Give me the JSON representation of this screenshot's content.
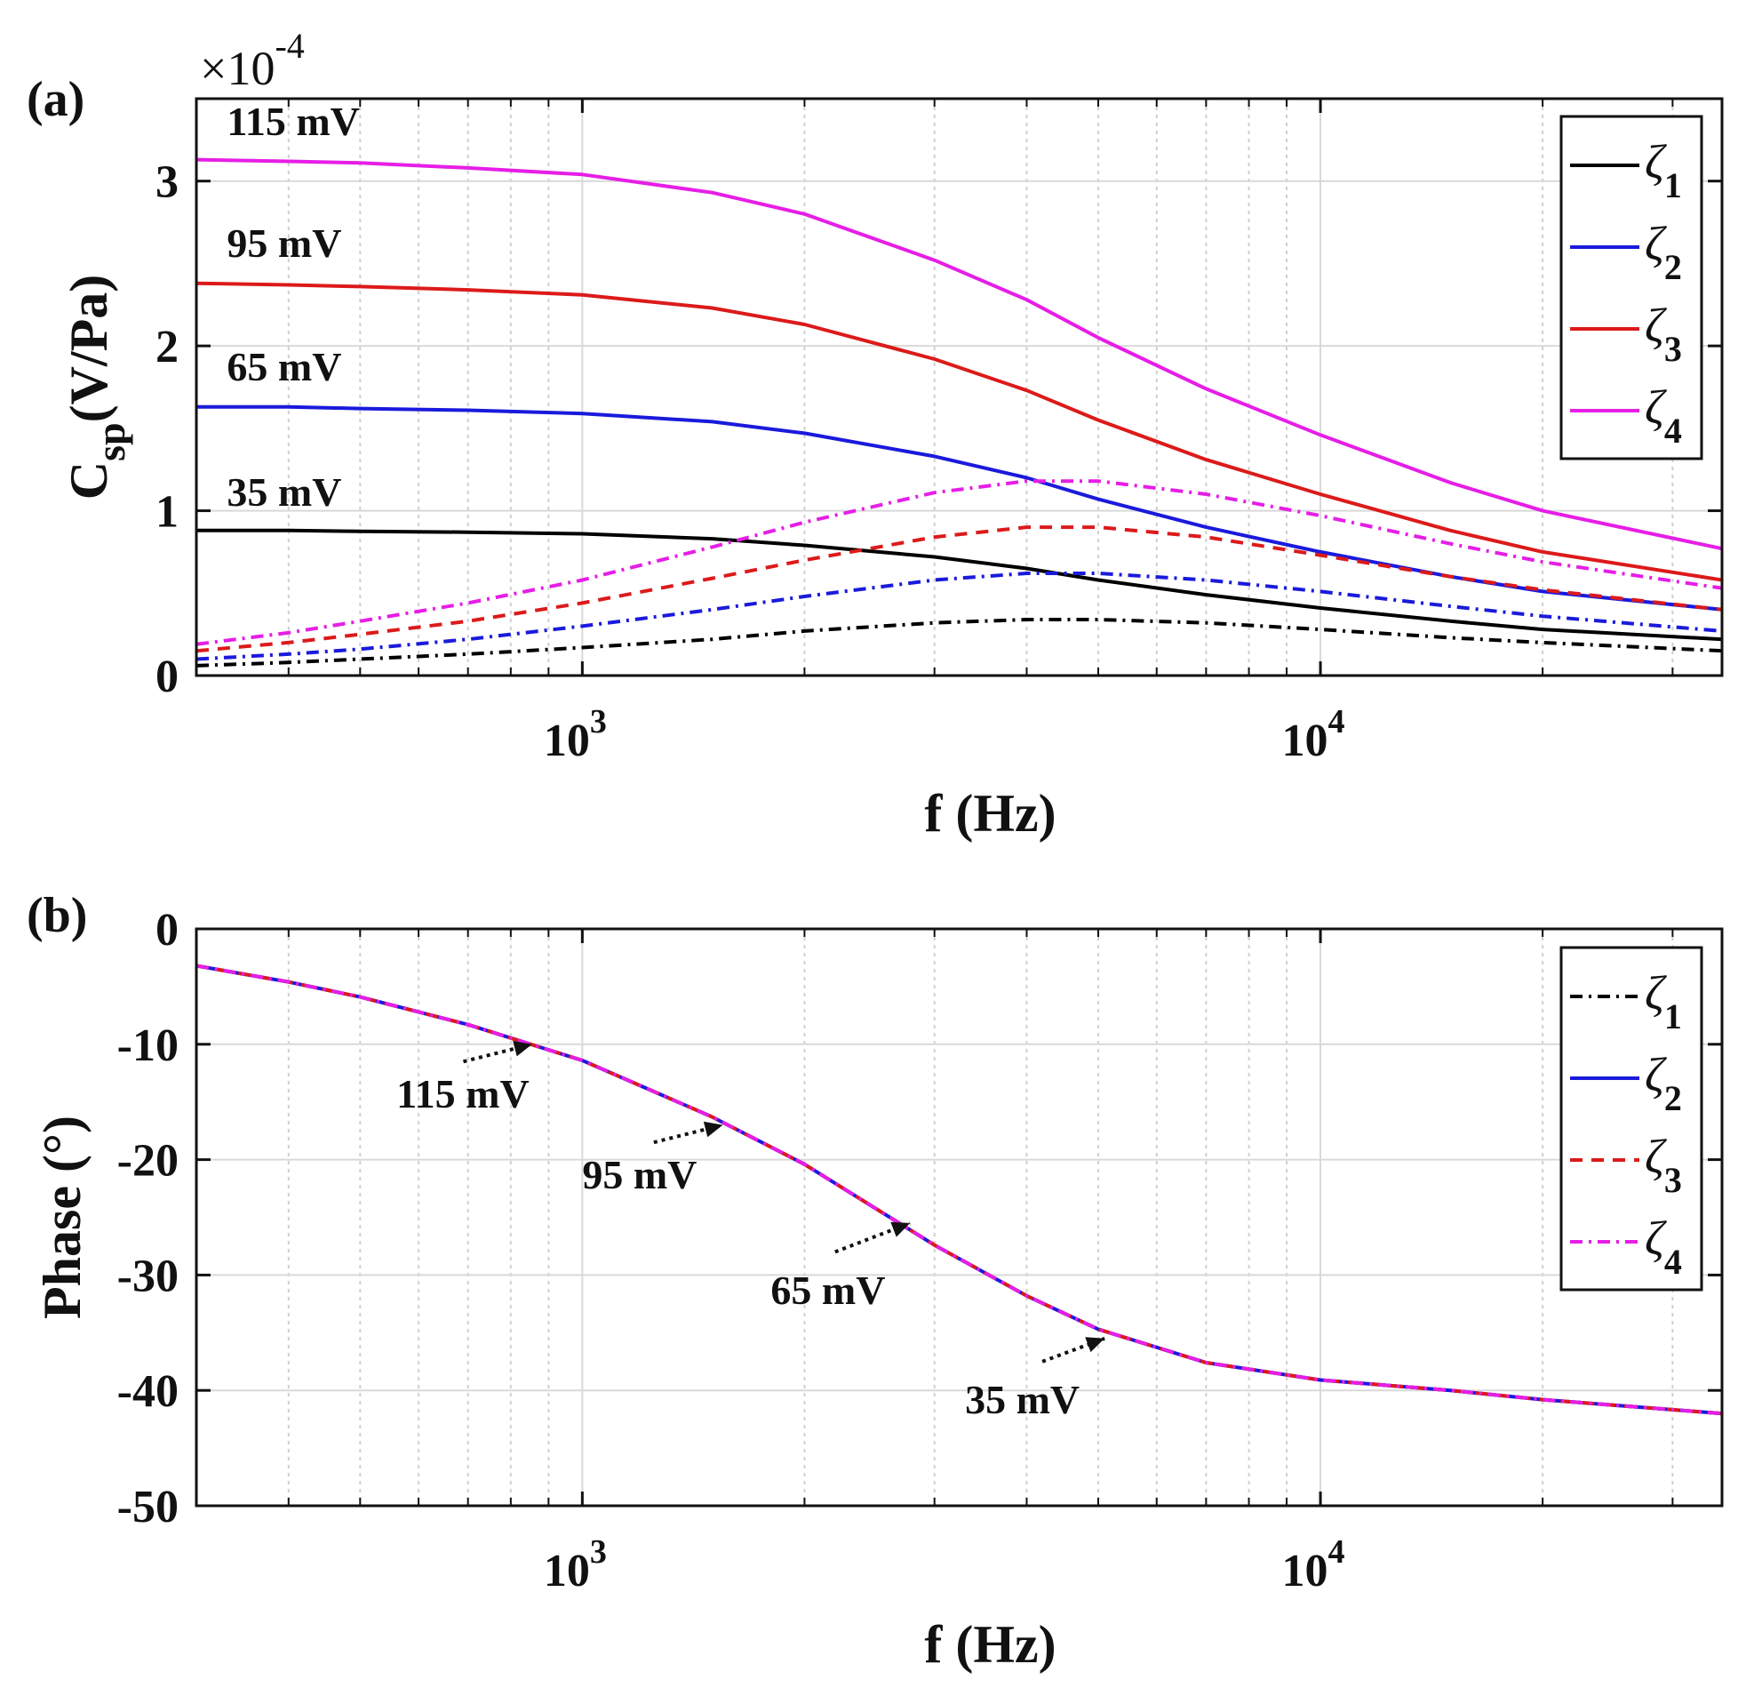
{
  "chart_data": [
    {
      "panel_label": "(a)",
      "type": "line",
      "x_scale": "log",
      "xlim": [
        300,
        35000
      ],
      "ylim": [
        0,
        3.5
      ],
      "y_multiplier": "×10",
      "y_multiplier_exponent": "-4",
      "yticks": [
        0,
        1,
        2,
        3
      ],
      "ytick_labels": [
        "0",
        "1",
        "2",
        "3"
      ],
      "xticks": [
        1000,
        10000
      ],
      "xtick_labels": [
        {
          "base": "10",
          "exp": "3"
        },
        {
          "base": "10",
          "exp": "4"
        }
      ],
      "xlabel": "f (Hz)",
      "ylabel": {
        "main": "C",
        "sub": "sp",
        "rest": "(V/Pa)"
      },
      "x_points": [
        300,
        400,
        500,
        700,
        1000,
        1500,
        2000,
        3000,
        4000,
        5000,
        7000,
        10000,
        15000,
        20000,
        35000
      ],
      "series": [
        {
          "name": "ζ1 (35 mV)",
          "color": "#000000",
          "dash": "solid",
          "values": [
            0.88,
            0.88,
            0.875,
            0.87,
            0.86,
            0.83,
            0.79,
            0.72,
            0.65,
            0.58,
            0.49,
            0.41,
            0.33,
            0.28,
            0.22
          ]
        },
        {
          "name": "ζ2 (65 mV)",
          "color": "#1a1adc",
          "dash": "solid",
          "values": [
            1.63,
            1.63,
            1.62,
            1.61,
            1.59,
            1.54,
            1.47,
            1.33,
            1.2,
            1.07,
            0.9,
            0.75,
            0.6,
            0.51,
            0.4
          ]
        },
        {
          "name": "ζ3 (95 mV)",
          "color": "#dc1a1a",
          "dash": "solid",
          "values": [
            2.38,
            2.37,
            2.36,
            2.34,
            2.31,
            2.23,
            2.13,
            1.92,
            1.73,
            1.55,
            1.31,
            1.1,
            0.88,
            0.75,
            0.58
          ]
        },
        {
          "name": "ζ4 (115 mV)",
          "color": "#e61ee6",
          "dash": "solid",
          "values": [
            3.13,
            3.12,
            3.11,
            3.08,
            3.04,
            2.93,
            2.8,
            2.52,
            2.28,
            2.05,
            1.74,
            1.46,
            1.17,
            1.0,
            0.77
          ]
        },
        {
          "name": "ζ1 dash-dot",
          "color": "#000000",
          "dash": "dashdot",
          "values": [
            0.06,
            0.08,
            0.1,
            0.13,
            0.17,
            0.22,
            0.27,
            0.32,
            0.34,
            0.34,
            0.32,
            0.28,
            0.23,
            0.2,
            0.15
          ]
        },
        {
          "name": "ζ2 dash-dot",
          "color": "#1a1adc",
          "dash": "dashdot",
          "values": [
            0.1,
            0.13,
            0.16,
            0.22,
            0.3,
            0.4,
            0.48,
            0.58,
            0.62,
            0.62,
            0.58,
            0.51,
            0.42,
            0.36,
            0.27
          ]
        },
        {
          "name": "ζ3 dashed",
          "color": "#dc1a1a",
          "dash": "dashed",
          "values": [
            0.15,
            0.2,
            0.25,
            0.33,
            0.44,
            0.59,
            0.7,
            0.84,
            0.9,
            0.9,
            0.84,
            0.73,
            0.6,
            0.52,
            0.4
          ]
        },
        {
          "name": "ζ4 dash-dot",
          "color": "#e61ee6",
          "dash": "dashdot",
          "values": [
            0.19,
            0.26,
            0.33,
            0.44,
            0.58,
            0.78,
            0.93,
            1.11,
            1.18,
            1.18,
            1.1,
            0.97,
            0.8,
            0.69,
            0.53
          ]
        }
      ],
      "annotations": [
        {
          "text": "115 mV",
          "x": 330,
          "y": 3.28
        },
        {
          "text": "95 mV",
          "x": 330,
          "y": 2.54
        },
        {
          "text": "65 mV",
          "x": 330,
          "y": 1.79
        },
        {
          "text": "35 mV",
          "x": 330,
          "y": 1.03
        }
      ],
      "legend": {
        "position": "top-right",
        "entries": [
          {
            "symbol": "ζ",
            "sub": "1",
            "color": "#000000",
            "dash": "solid"
          },
          {
            "symbol": "ζ",
            "sub": "2",
            "color": "#1a1adc",
            "dash": "solid"
          },
          {
            "symbol": "ζ",
            "sub": "3",
            "color": "#dc1a1a",
            "dash": "solid"
          },
          {
            "symbol": "ζ",
            "sub": "4",
            "color": "#e61ee6",
            "dash": "solid"
          }
        ]
      }
    },
    {
      "panel_label": "(b)",
      "type": "line",
      "x_scale": "log",
      "xlim": [
        300,
        35000
      ],
      "ylim": [
        -50,
        0
      ],
      "yticks": [
        0,
        -10,
        -20,
        -30,
        -40,
        -50
      ],
      "ytick_labels": [
        "0",
        "-10",
        "-20",
        "-30",
        "-40",
        "-50"
      ],
      "xticks": [
        1000,
        10000
      ],
      "xtick_labels": [
        {
          "base": "10",
          "exp": "3"
        },
        {
          "base": "10",
          "exp": "4"
        }
      ],
      "xlabel": "f (Hz)",
      "ylabel": "Phase (°)",
      "x_points": [
        300,
        400,
        500,
        700,
        1000,
        1500,
        2000,
        3000,
        4000,
        5000,
        7000,
        10000,
        15000,
        20000,
        35000
      ],
      "series": [
        {
          "name": "ζ1",
          "color": "#000000",
          "dash": "dashdot",
          "values": [
            -3.2,
            -4.6,
            -5.9,
            -8.3,
            -11.4,
            -16.3,
            -20.4,
            -27.4,
            -31.8,
            -34.7,
            -37.6,
            -39.1,
            -40.0,
            -40.8,
            -42.0
          ]
        },
        {
          "name": "ζ2",
          "color": "#1a1adc",
          "dash": "solid",
          "values": [
            -3.2,
            -4.6,
            -5.9,
            -8.3,
            -11.4,
            -16.3,
            -20.4,
            -27.4,
            -31.8,
            -34.7,
            -37.6,
            -39.1,
            -40.0,
            -40.8,
            -42.0
          ]
        },
        {
          "name": "ζ3",
          "color": "#dc1a1a",
          "dash": "dashed",
          "values": [
            -3.2,
            -4.6,
            -5.9,
            -8.3,
            -11.4,
            -16.3,
            -20.4,
            -27.4,
            -31.8,
            -34.7,
            -37.6,
            -39.1,
            -40.0,
            -40.8,
            -42.0
          ]
        },
        {
          "name": "ζ4",
          "color": "#e61ee6",
          "dash": "dashdot",
          "values": [
            -3.2,
            -4.6,
            -5.9,
            -8.3,
            -11.4,
            -16.3,
            -20.4,
            -27.4,
            -31.8,
            -34.7,
            -37.6,
            -39.1,
            -40.0,
            -40.8,
            -42.0
          ]
        }
      ],
      "annotations": [
        {
          "text": "115 mV",
          "x": 560,
          "y": -15.5,
          "arrow_from": [
            690,
            -11.5
          ],
          "arrow_to": [
            855,
            -10.0
          ]
        },
        {
          "text": "95 mV",
          "x": 1000,
          "y": -22.5,
          "arrow_from": [
            1250,
            -18.5
          ],
          "arrow_to": [
            1550,
            -17.0
          ]
        },
        {
          "text": "65 mV",
          "x": 1800,
          "y": -32.5,
          "arrow_from": [
            2200,
            -28.0
          ],
          "arrow_to": [
            2780,
            -25.5
          ]
        },
        {
          "text": "35 mV",
          "x": 3300,
          "y": -42.0,
          "arrow_from": [
            4200,
            -37.5
          ],
          "arrow_to": [
            5100,
            -35.5
          ]
        }
      ],
      "legend": {
        "position": "top-right",
        "entries": [
          {
            "symbol": "ζ",
            "sub": "1",
            "color": "#000000",
            "dash": "dashdot"
          },
          {
            "symbol": "ζ",
            "sub": "2",
            "color": "#1a1adc",
            "dash": "solid"
          },
          {
            "symbol": "ζ",
            "sub": "3",
            "color": "#dc1a1a",
            "dash": "dashed"
          },
          {
            "symbol": "ζ",
            "sub": "4",
            "color": "#e61ee6",
            "dash": "dashdot"
          }
        ]
      }
    }
  ]
}
